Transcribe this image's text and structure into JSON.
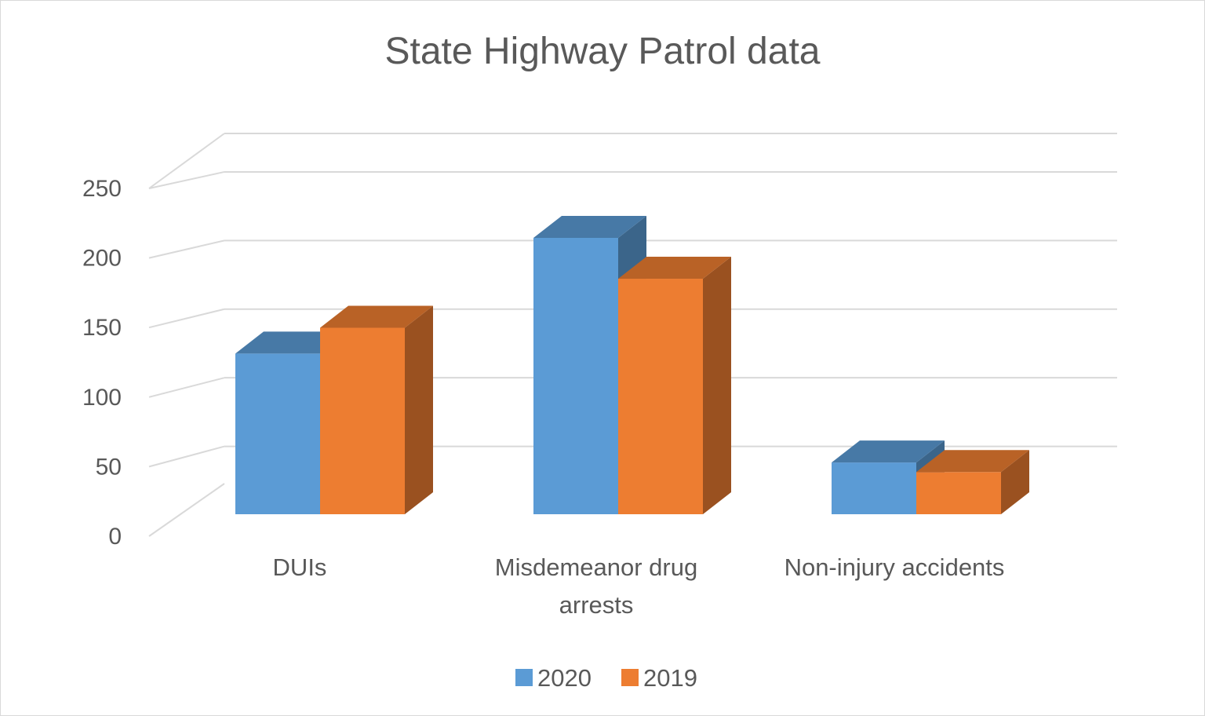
{
  "chart_data": {
    "type": "bar",
    "style": "3d-clustered-column",
    "title": "State Highway Patrol data",
    "categories": [
      [
        "DUIs"
      ],
      [
        "Misdemeanor drug",
        "arrests"
      ],
      [
        "Non-injury accidents"
      ]
    ],
    "series": [
      {
        "name": "2020",
        "color": "#5b9bd5",
        "values": [
          118,
          203,
          38
        ]
      },
      {
        "name": "2019",
        "color": "#ed7d31",
        "values": [
          137,
          173,
          31
        ]
      }
    ],
    "yticks": [
      0,
      50,
      100,
      150,
      200,
      250
    ],
    "ylim": [
      0,
      250
    ],
    "grid": true,
    "legend": "bottom",
    "xlabel": "",
    "ylabel": ""
  }
}
